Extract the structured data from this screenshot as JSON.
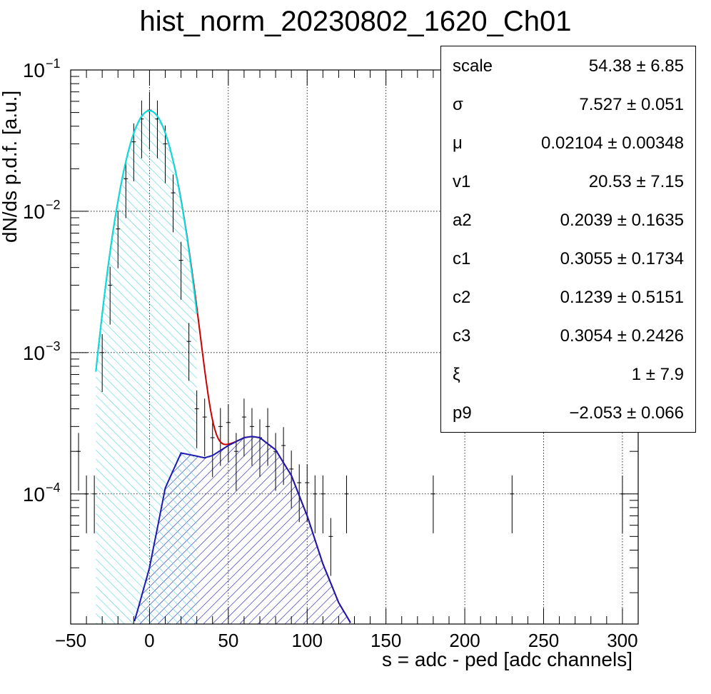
{
  "chart_data": {
    "type": "histogram",
    "title": "hist_norm_20230802_1620_Ch01",
    "xlabel": "s = adc - ped [adc channels]",
    "ylabel": "dN/ds p.d.f. [a.u.]",
    "xlim": [
      -50,
      310
    ],
    "ylim": [
      1.2e-05,
      0.1
    ],
    "yscale": "log",
    "grid": true,
    "x_ticks": [
      "−50",
      "0",
      "50",
      "100",
      "150",
      "200",
      "250",
      "300"
    ],
    "y_ticks": [
      {
        "base": "10",
        "exp": "−1"
      },
      {
        "base": "10",
        "exp": "−2"
      },
      {
        "base": "10",
        "exp": "−3"
      },
      {
        "base": "10",
        "exp": "−4"
      }
    ],
    "colors": {
      "histogram_line": "#000000",
      "pedestal_fit": "#00e5e5",
      "signal_fit": "#1a1ab3",
      "total_fit": "#cc0000",
      "hatch_pedestal": "#66d9e0",
      "hatch_signal": "#1a1ab3"
    },
    "fit_parameters": {
      "scale": 54.38,
      "sigma": 7.527,
      "mu": 0.02104,
      "v1": 20.53,
      "a2": 0.2039,
      "c1": 0.3055,
      "c2": 0.1239,
      "c3": 0.3054,
      "xi": 1,
      "p9": -2.053
    },
    "signal_curve": {
      "x": [
        -10,
        0,
        10,
        20,
        30,
        35,
        40,
        50,
        60,
        65,
        70,
        80,
        90,
        100,
        110,
        120,
        128
      ],
      "y": [
        1.2e-05,
        3e-05,
        0.00011,
        0.000195,
        0.000185,
        0.00018,
        0.000187,
        0.00022,
        0.00025,
        0.000255,
        0.00025,
        0.000205,
        0.000135,
        7e-05,
        3.2e-05,
        1.7e-05,
        1.2e-05
      ]
    },
    "histogram_points": {
      "x": [
        -45,
        -40,
        -35,
        -30,
        -25,
        -20,
        -15,
        -10,
        -5,
        0,
        5,
        10,
        15,
        20,
        25,
        30,
        35,
        40,
        45,
        50,
        55,
        60,
        65,
        70,
        75,
        80,
        85,
        90,
        95,
        100,
        105,
        110,
        115,
        125,
        180,
        230,
        300
      ],
      "y": [
        0.0002,
        0.0001,
        0.0001,
        0.001,
        0.003,
        0.0075,
        0.017,
        0.031,
        0.045,
        0.052,
        0.045,
        0.03,
        0.0135,
        0.0045,
        0.0012,
        0.0004,
        0.00035,
        0.00025,
        0.0003,
        0.00032,
        0.0002,
        0.00035,
        0.0003,
        0.00025,
        0.0003,
        0.0002,
        0.00022,
        0.00015,
        0.00012,
        0.00012,
        0.0001,
        0.0001,
        5e-05,
        0.0001,
        0.0001,
        0.0001,
        0.0001
      ]
    }
  },
  "stats": [
    {
      "name": "scale",
      "value": "54.38 ± 6.85"
    },
    {
      "name": "σ",
      "value": "7.527 ± 0.051"
    },
    {
      "name": "μ",
      "value": "0.02104 ± 0.00348"
    },
    {
      "name": "v1",
      "value": "20.53 ± 7.15"
    },
    {
      "name": "a2",
      "value": "0.2039 ± 0.1635"
    },
    {
      "name": "c1",
      "value": "0.3055 ± 0.1734"
    },
    {
      "name": "c2",
      "value": "0.1239 ± 0.5151"
    },
    {
      "name": "c3",
      "value": "0.3054 ± 0.2426"
    },
    {
      "name": "ξ",
      "value": "1 ± 7.9"
    },
    {
      "name": "p9",
      "value": "−2.053 ± 0.066"
    }
  ]
}
